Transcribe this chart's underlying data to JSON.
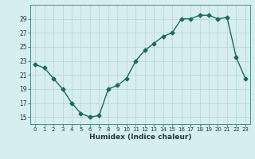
{
  "x": [
    0,
    1,
    2,
    3,
    4,
    5,
    6,
    7,
    8,
    9,
    10,
    11,
    12,
    13,
    14,
    15,
    16,
    17,
    18,
    19,
    20,
    21,
    22,
    23
  ],
  "y": [
    22.5,
    22.0,
    20.5,
    19.0,
    17.0,
    15.5,
    15.0,
    15.2,
    19.0,
    19.5,
    20.5,
    23.0,
    24.5,
    25.5,
    26.5,
    27.0,
    29.0,
    29.0,
    29.5,
    29.5,
    29.0,
    29.2,
    23.5,
    20.5
  ],
  "xlabel": "Humidex (Indice chaleur)",
  "xlim": [
    -0.5,
    23.5
  ],
  "ylim": [
    14,
    31
  ],
  "yticks": [
    15,
    17,
    19,
    21,
    23,
    25,
    27,
    29
  ],
  "xticks": [
    0,
    1,
    2,
    3,
    4,
    5,
    6,
    7,
    8,
    9,
    10,
    11,
    12,
    13,
    14,
    15,
    16,
    17,
    18,
    19,
    20,
    21,
    22,
    23
  ],
  "line_color": "#1a6b5a",
  "bg_color": "#d7eef0",
  "grid_color": "#b8d8dc",
  "marker": "D",
  "markersize": 2.5,
  "linewidth": 1.0
}
